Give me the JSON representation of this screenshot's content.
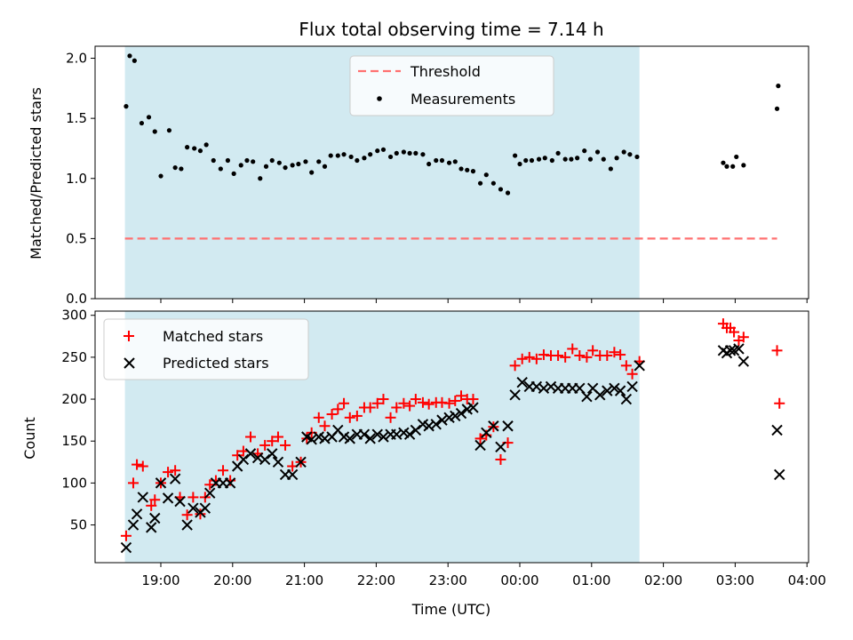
{
  "chart_data": [
    {
      "type": "scatter",
      "title": "Flux total observing time = 7.14 h",
      "xlabel": "",
      "ylabel": "Matched/Predicted stars",
      "ylim": [
        0,
        2.1
      ],
      "y_ticks": [
        "0.0",
        "0.5",
        "1.0",
        "1.5",
        "2.0"
      ],
      "y_tick_values": [
        0,
        0.5,
        1.0,
        1.5,
        2.0
      ],
      "legend_position": "top-center",
      "shaded_span": {
        "start": "18:30",
        "end": "01:40",
        "color": "#add8e6"
      },
      "threshold": {
        "name": "Threshold",
        "value": 0.5,
        "x_start": "18:30",
        "x_end": "03:35",
        "color": "#ff7070"
      },
      "series": [
        {
          "name": "Measurements",
          "color": "#000000",
          "x": [
            "18:31",
            "18:34",
            "18:38",
            "18:44",
            "18:50",
            "18:55",
            "19:00",
            "19:07",
            "19:12",
            "19:17",
            "19:22",
            "19:28",
            "19:33",
            "19:38",
            "19:44",
            "19:50",
            "19:56",
            "20:01",
            "20:07",
            "20:12",
            "20:17",
            "20:23",
            "20:28",
            "20:33",
            "20:39",
            "20:44",
            "20:50",
            "20:55",
            "21:01",
            "21:06",
            "21:12",
            "21:17",
            "21:22",
            "21:28",
            "21:33",
            "21:39",
            "21:44",
            "21:50",
            "21:55",
            "22:01",
            "22:06",
            "22:12",
            "22:17",
            "22:23",
            "22:28",
            "22:33",
            "22:39",
            "22:44",
            "22:50",
            "22:55",
            "23:01",
            "23:06",
            "23:11",
            "23:16",
            "23:21",
            "23:27",
            "23:32",
            "23:38",
            "23:44",
            "23:50",
            "23:56",
            "00:00",
            "00:05",
            "00:10",
            "00:16",
            "00:21",
            "00:27",
            "00:32",
            "00:38",
            "00:43",
            "00:48",
            "00:54",
            "00:59",
            "01:05",
            "01:10",
            "01:16",
            "01:21",
            "01:27",
            "01:32",
            "01:38",
            "02:50",
            "02:53",
            "02:58",
            "03:01",
            "03:07",
            "03:35",
            "03:36"
          ],
          "y": [
            1.6,
            2.02,
            1.98,
            1.46,
            1.51,
            1.39,
            1.02,
            1.4,
            1.09,
            1.08,
            1.26,
            1.25,
            1.23,
            1.28,
            1.15,
            1.08,
            1.15,
            1.04,
            1.11,
            1.15,
            1.14,
            1.0,
            1.1,
            1.15,
            1.13,
            1.09,
            1.11,
            1.12,
            1.14,
            1.05,
            1.14,
            1.1,
            1.19,
            1.19,
            1.2,
            1.18,
            1.15,
            1.17,
            1.2,
            1.23,
            1.24,
            1.18,
            1.21,
            1.22,
            1.21,
            1.21,
            1.2,
            1.12,
            1.15,
            1.15,
            1.13,
            1.14,
            1.08,
            1.07,
            1.06,
            0.96,
            1.03,
            0.96,
            0.91,
            0.88,
            1.19,
            1.12,
            1.15,
            1.15,
            1.16,
            1.17,
            1.15,
            1.21,
            1.16,
            1.16,
            1.17,
            1.23,
            1.16,
            1.22,
            1.16,
            1.08,
            1.17,
            1.22,
            1.2,
            1.18,
            1.13,
            1.1,
            1.1,
            1.18,
            1.11,
            1.58,
            1.77
          ]
        }
      ]
    },
    {
      "type": "scatter",
      "title": "",
      "xlabel": "Time (UTC)",
      "ylabel": "Count",
      "ylim": [
        5,
        305
      ],
      "y_ticks": [
        "50",
        "100",
        "150",
        "200",
        "250",
        "300"
      ],
      "y_tick_values": [
        50,
        100,
        150,
        200,
        250,
        300
      ],
      "x_ticks": [
        "19:00",
        "20:00",
        "21:00",
        "22:00",
        "23:00",
        "00:00",
        "01:00",
        "02:00",
        "03:00",
        "04:00"
      ],
      "legend_position": "top-left",
      "shaded_span": {
        "start": "18:30",
        "end": "01:40",
        "color": "#add8e6"
      },
      "series": [
        {
          "name": "Matched stars",
          "marker": "plus",
          "color": "#ff0000",
          "x": [
            "18:31",
            "18:37",
            "18:40",
            "18:45",
            "18:52",
            "18:55",
            "19:00",
            "19:06",
            "19:12",
            "19:16",
            "19:22",
            "19:27",
            "19:33",
            "19:37",
            "19:41",
            "19:46",
            "19:52",
            "19:58",
            "20:04",
            "20:09",
            "20:15",
            "20:21",
            "20:27",
            "20:33",
            "20:38",
            "20:44",
            "20:50",
            "20:57",
            "21:02",
            "21:06",
            "21:12",
            "21:17",
            "21:23",
            "21:28",
            "21:33",
            "21:38",
            "21:44",
            "21:50",
            "21:55",
            "22:01",
            "22:06",
            "22:12",
            "22:17",
            "22:23",
            "22:28",
            "22:33",
            "22:39",
            "22:44",
            "22:50",
            "22:55",
            "23:01",
            "23:06",
            "23:11",
            "23:16",
            "23:21",
            "23:27",
            "23:32",
            "23:38",
            "23:44",
            "23:50",
            "23:56",
            "00:02",
            "00:08",
            "00:14",
            "00:20",
            "00:26",
            "00:32",
            "00:38",
            "00:44",
            "00:50",
            "00:56",
            "01:01",
            "01:07",
            "01:13",
            "01:19",
            "01:24",
            "01:29",
            "01:34",
            "01:40",
            "02:50",
            "02:53",
            "02:56",
            "02:59",
            "03:03",
            "03:07",
            "03:35",
            "03:37"
          ],
          "y": [
            37,
            100,
            122,
            120,
            73,
            80,
            100,
            113,
            115,
            83,
            62,
            83,
            63,
            83,
            98,
            103,
            115,
            103,
            133,
            138,
            155,
            135,
            145,
            150,
            155,
            145,
            120,
            125,
            153,
            160,
            178,
            168,
            182,
            188,
            195,
            178,
            180,
            190,
            190,
            195,
            200,
            178,
            190,
            195,
            192,
            200,
            196,
            194,
            196,
            196,
            195,
            198,
            204,
            200,
            200,
            153,
            157,
            167,
            128,
            148,
            240,
            248,
            250,
            248,
            253,
            252,
            252,
            250,
            260,
            252,
            250,
            258,
            252,
            252,
            256,
            253,
            240,
            230,
            245,
            290,
            285,
            285,
            280,
            270,
            274,
            258,
            195
          ]
        },
        {
          "name": "Predicted stars",
          "marker": "x",
          "color": "#000000",
          "x": [
            "18:31",
            "18:37",
            "18:40",
            "18:45",
            "18:52",
            "18:55",
            "19:00",
            "19:06",
            "19:12",
            "19:16",
            "19:22",
            "19:27",
            "19:33",
            "19:37",
            "19:41",
            "19:46",
            "19:52",
            "19:58",
            "20:04",
            "20:09",
            "20:15",
            "20:21",
            "20:27",
            "20:33",
            "20:38",
            "20:44",
            "20:50",
            "20:57",
            "21:02",
            "21:06",
            "21:12",
            "21:17",
            "21:23",
            "21:28",
            "21:33",
            "21:38",
            "21:44",
            "21:50",
            "21:55",
            "22:01",
            "22:06",
            "22:12",
            "22:17",
            "22:23",
            "22:28",
            "22:33",
            "22:39",
            "22:44",
            "22:50",
            "22:55",
            "23:01",
            "23:06",
            "23:11",
            "23:16",
            "23:21",
            "23:27",
            "23:32",
            "23:38",
            "23:44",
            "23:50",
            "23:56",
            "00:02",
            "00:08",
            "00:14",
            "00:20",
            "00:26",
            "00:32",
            "00:38",
            "00:44",
            "00:50",
            "00:56",
            "01:01",
            "01:07",
            "01:13",
            "01:19",
            "01:24",
            "01:29",
            "01:34",
            "01:40",
            "02:50",
            "02:53",
            "02:56",
            "02:59",
            "03:03",
            "03:07",
            "03:35",
            "03:37"
          ],
          "y": [
            23,
            50,
            63,
            83,
            47,
            58,
            100,
            82,
            105,
            78,
            50,
            70,
            65,
            70,
            88,
            100,
            100,
            100,
            120,
            128,
            135,
            130,
            128,
            135,
            125,
            110,
            110,
            125,
            155,
            152,
            155,
            153,
            155,
            163,
            155,
            153,
            158,
            158,
            153,
            158,
            155,
            158,
            158,
            160,
            158,
            163,
            170,
            168,
            170,
            175,
            178,
            180,
            183,
            188,
            190,
            145,
            160,
            168,
            143,
            168,
            205,
            220,
            215,
            215,
            213,
            215,
            213,
            213,
            213,
            213,
            203,
            213,
            205,
            210,
            213,
            210,
            200,
            215,
            240,
            258,
            255,
            258,
            258,
            260,
            245,
            163,
            110
          ]
        }
      ]
    }
  ]
}
